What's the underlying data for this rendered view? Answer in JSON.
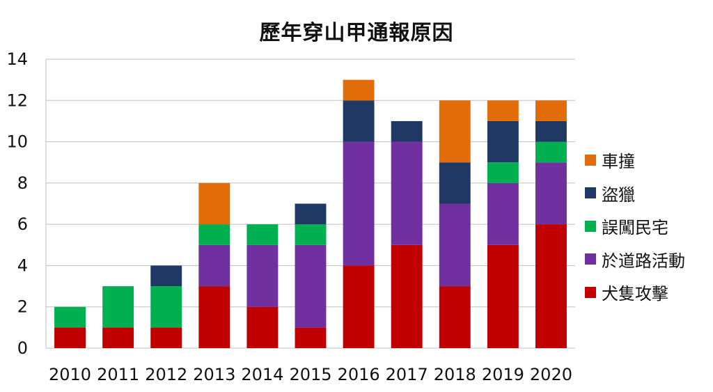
{
  "chart_data": {
    "type": "bar",
    "stacked": true,
    "title": "歷年穿山甲通報原因",
    "categories": [
      "2010",
      "2011",
      "2012",
      "2013",
      "2014",
      "2015",
      "2016",
      "2017",
      "2018",
      "2019",
      "2020"
    ],
    "ylim": [
      0,
      14
    ],
    "yticks": [
      0,
      2,
      4,
      6,
      8,
      10,
      12,
      14
    ],
    "grid": true,
    "legend_position": "right",
    "series": [
      {
        "name": "犬隻攻擊",
        "color": "#C00000",
        "values": [
          1,
          1,
          1,
          3,
          2,
          1,
          4,
          5,
          3,
          5,
          6
        ]
      },
      {
        "name": "於道路活動",
        "color": "#7030A0",
        "values": [
          0,
          0,
          0,
          2,
          3,
          4,
          6,
          5,
          4,
          3,
          3
        ]
      },
      {
        "name": "誤闖民宅",
        "color": "#00B050",
        "values": [
          1,
          2,
          2,
          1,
          1,
          1,
          0,
          0,
          0,
          1,
          1
        ]
      },
      {
        "name": "盜獵",
        "color": "#1F3864",
        "values": [
          0,
          0,
          1,
          0,
          0,
          1,
          2,
          1,
          2,
          2,
          1
        ]
      },
      {
        "name": "車撞",
        "color": "#E36C0A",
        "values": [
          0,
          0,
          0,
          2,
          0,
          0,
          1,
          0,
          3,
          1,
          1
        ]
      }
    ]
  }
}
